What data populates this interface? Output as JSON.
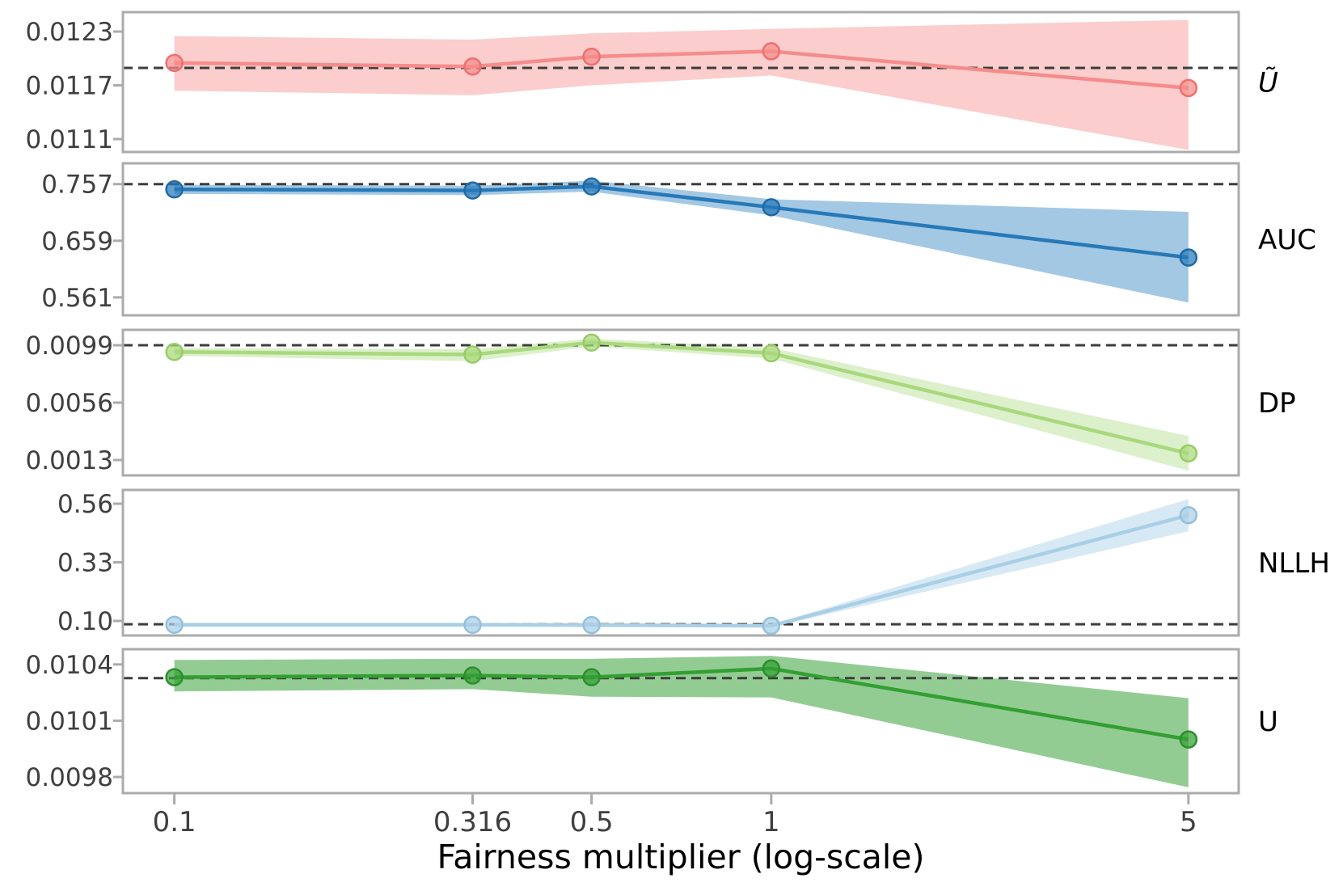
{
  "figure": {
    "background": "#ffffff",
    "border_color": "#ababab",
    "baseline_color": "#3d3d3d",
    "tick_text_color": "#3f3f3f",
    "panel_label_color": "#000000"
  },
  "chart_data": {
    "type": "line",
    "xlabel": "Fairness multiplier (log-scale)",
    "xscale": "log",
    "x": [
      0.1,
      0.316,
      0.5,
      1,
      5
    ],
    "xtick_labels": [
      "0.1",
      "0.316",
      "0.5",
      "1",
      "5"
    ],
    "xlim": [
      0.082,
      6.07
    ],
    "legend_position": "right-of-each-panel",
    "grid": false,
    "panels": [
      {
        "name": "u-tilde",
        "label": "Ũ",
        "label_italic": true,
        "line_color": "#f58c8c",
        "marker_edge_color": "#ef6f6f",
        "band_color": "#fbcdcd",
        "yticks": [
          0.0123,
          0.0117,
          0.0111
        ],
        "ytick_labels": [
          "0.0123",
          "0.0117",
          "0.0111"
        ],
        "ylim": [
          0.010956,
          0.012517
        ],
        "baseline_dashed": 0.011894,
        "values": [
          0.01195,
          0.01191,
          0.01202,
          0.01208,
          0.01167
        ],
        "band_upper": [
          0.01225,
          0.01221,
          0.01228,
          0.01233,
          0.01243
        ],
        "band_lower": [
          0.01164,
          0.01159,
          0.0117,
          0.01181,
          0.01098
        ]
      },
      {
        "name": "auc",
        "label": "AUC",
        "label_italic": false,
        "line_color": "#2779b8",
        "marker_edge_color": "#1f6aa5",
        "band_color": "#a3c8e4",
        "yticks": [
          0.757,
          0.659,
          0.561
        ],
        "ytick_labels": [
          "0.757",
          "0.659",
          "0.561"
        ],
        "ylim": [
          0.53,
          0.793
        ],
        "baseline_dashed": 0.757,
        "values": [
          0.748,
          0.746,
          0.753,
          0.717,
          0.63
        ],
        "band_upper": [
          0.756,
          0.754,
          0.763,
          0.731,
          0.709
        ],
        "band_lower": [
          0.74,
          0.738,
          0.744,
          0.703,
          0.552
        ]
      },
      {
        "name": "dp",
        "label": "DP",
        "label_italic": false,
        "line_color": "#a9d87d",
        "marker_edge_color": "#98cc65",
        "band_color": "#dcf0cb",
        "yticks": [
          0.0099,
          0.0056,
          0.0013
        ],
        "ytick_labels": [
          "0.0099",
          "0.0056",
          "0.0013"
        ],
        "ylim": [
          0.00015,
          0.01105
        ],
        "baseline_dashed": 0.0099,
        "values": [
          0.0094,
          0.0092,
          0.0101,
          0.0093,
          0.0018
        ],
        "band_upper": [
          0.0097,
          0.0096,
          0.0104,
          0.0097,
          0.0031
        ],
        "band_lower": [
          0.0091,
          0.0087,
          0.0098,
          0.0089,
          0.0005
        ]
      },
      {
        "name": "nllh",
        "label": "NLLH",
        "label_italic": false,
        "line_color": "#a9cfe6",
        "marker_edge_color": "#93c1dd",
        "band_color": "#d7e9f4",
        "yticks": [
          0.56,
          0.33,
          0.1
        ],
        "ytick_labels": [
          "0.56",
          "0.33",
          "0.10"
        ],
        "ylim": [
          0.043,
          0.614
        ],
        "baseline_dashed": 0.087,
        "values": [
          0.085,
          0.085,
          0.084,
          0.081,
          0.515
        ],
        "band_upper": [
          0.089,
          0.089,
          0.088,
          0.086,
          0.578
        ],
        "band_lower": [
          0.081,
          0.081,
          0.08,
          0.076,
          0.452
        ]
      },
      {
        "name": "u",
        "label": "U",
        "label_italic": false,
        "line_color": "#339f33",
        "marker_edge_color": "#2c8f2c",
        "band_color": "#93cc93",
        "yticks": [
          0.0104,
          0.0101,
          0.0098
        ],
        "ytick_labels": [
          "0.0104",
          "0.0101",
          "0.0098"
        ],
        "ylim": [
          0.009714,
          0.010481
        ],
        "baseline_dashed": 0.010327,
        "values": [
          0.010332,
          0.010341,
          0.010332,
          0.010378,
          0.01
        ],
        "band_upper": [
          0.010424,
          0.01043,
          0.01043,
          0.010446,
          0.01022
        ],
        "band_lower": [
          0.010256,
          0.010268,
          0.010228,
          0.010224,
          0.009745
        ]
      }
    ]
  }
}
